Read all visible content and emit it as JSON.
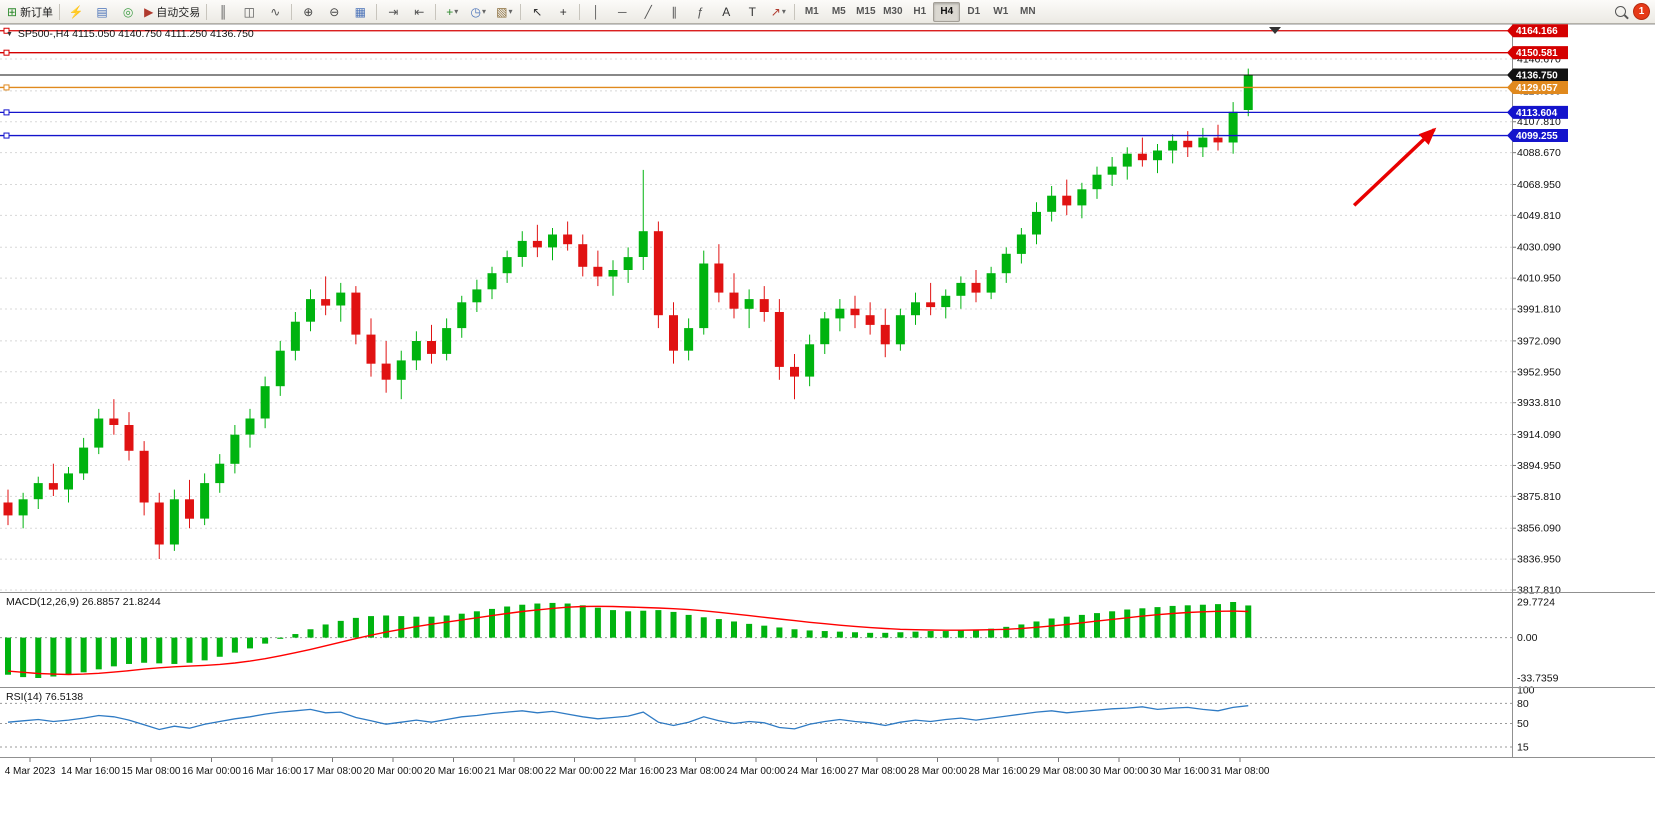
{
  "toolbar": {
    "new_order_label": "新订单",
    "autotrading_label": "自动交易",
    "groups": [
      {
        "items": [
          {
            "name": "new-order-button",
            "glyph": "⊞",
            "glyph_color": "#2e8b2e",
            "label": "新订单"
          }
        ]
      },
      {
        "items": [
          {
            "name": "market-watch-icon",
            "glyph": "⚡",
            "glyph_color": "#c8921e"
          },
          {
            "name": "data-window-icon",
            "glyph": "▤",
            "glyph_color": "#4a72b8"
          },
          {
            "name": "strategy-tester-icon",
            "glyph": "◎",
            "glyph_color": "#3f9d44"
          },
          {
            "name": "autotrading-button",
            "glyph": "▶",
            "glyph_color": "#b03a2e",
            "label": "自动交易"
          }
        ]
      },
      {
        "items": [
          {
            "name": "bar-chart-icon",
            "glyph": "║",
            "glyph_color": "#555555"
          },
          {
            "name": "candlestick-chart-icon",
            "glyph": "◫",
            "glyph_color": "#555555"
          },
          {
            "name": "line-chart-icon",
            "glyph": "∿",
            "glyph_color": "#555555"
          }
        ]
      },
      {
        "items": [
          {
            "name": "zoom-in-icon",
            "glyph": "⊕",
            "glyph_color": "#444444"
          },
          {
            "name": "zoom-out-icon",
            "glyph": "⊖",
            "glyph_color": "#444444"
          },
          {
            "name": "tile-windows-icon",
            "glyph": "▦",
            "glyph_color": "#4a72b8"
          }
        ]
      },
      {
        "items": [
          {
            "name": "auto-scroll-icon",
            "glyph": "⇥",
            "glyph_color": "#555555"
          },
          {
            "name": "chart-shift-icon",
            "glyph": "⇤",
            "glyph_color": "#555555"
          }
        ]
      },
      {
        "items": [
          {
            "name": "indicators-icon",
            "glyph": "+",
            "glyph_color": "#2e8b2e",
            "caret": true
          },
          {
            "name": "periods-icon",
            "glyph": "◷",
            "glyph_color": "#4a72b8",
            "caret": true
          },
          {
            "name": "templates-icon",
            "glyph": "▧",
            "glyph_color": "#8a6d3b",
            "caret": true
          }
        ]
      },
      {
        "items": [
          {
            "name": "cursor-icon",
            "glyph": "↖",
            "glyph_color": "#333333"
          },
          {
            "name": "crosshair-icon",
            "glyph": "+",
            "glyph_color": "#333333"
          }
        ]
      },
      {
        "items": [
          {
            "name": "vertical-line-icon",
            "glyph": "│",
            "glyph_color": "#555555"
          },
          {
            "name": "horizontal-line-icon",
            "glyph": "─",
            "glyph_color": "#555555"
          },
          {
            "name": "trendline-icon",
            "glyph": "╱",
            "glyph_color": "#555555"
          },
          {
            "name": "channel-icon",
            "glyph": "∥",
            "glyph_color": "#555555"
          },
          {
            "name": "fibonacci-icon",
            "glyph": "ƒ",
            "glyph_color": "#555555"
          },
          {
            "name": "text-icon",
            "glyph": "A",
            "glyph_color": "#333333"
          },
          {
            "name": "text-label-icon",
            "glyph": "T",
            "glyph_color": "#333333"
          },
          {
            "name": "arrows-icon",
            "glyph": "↗",
            "glyph_color": "#b03a2e",
            "caret": true
          }
        ]
      }
    ],
    "timeframes": [
      "M1",
      "M5",
      "M15",
      "M30",
      "H1",
      "H4",
      "D1",
      "W1",
      "MN"
    ],
    "active_timeframe": "H4",
    "notification_count": "1"
  },
  "chart": {
    "symbol": "SP500-,H4",
    "ohlc": "4115.050 4140.750 4111.250 4136.750"
  },
  "price_axis": {
    "labels": [
      "4146.670",
      "4126.930",
      "4107.810",
      "4088.670",
      "4068.950",
      "4049.810",
      "4030.090",
      "4010.950",
      "3991.810",
      "3972.090",
      "3952.950",
      "3933.810",
      "3914.090",
      "3894.950",
      "3875.810",
      "3856.090",
      "3836.950",
      "3817.810"
    ]
  },
  "time_axis": {
    "labels": [
      "4 Mar 2023",
      "14 Mar 16:00",
      "15 Mar 08:00",
      "16 Mar 00:00",
      "16 Mar 16:00",
      "17 Mar 08:00",
      "20 Mar 00:00",
      "20 Mar 16:00",
      "21 Mar 08:00",
      "22 Mar 00:00",
      "22 Mar 16:00",
      "23 Mar 08:00",
      "24 Mar 00:00",
      "24 Mar 16:00",
      "27 Mar 08:00",
      "28 Mar 00:00",
      "28 Mar 16:00",
      "29 Mar 08:00",
      "30 Mar 00:00",
      "30 Mar 16:00",
      "31 Mar 08:00"
    ]
  },
  "price_lines": [
    {
      "label": "4164.166",
      "price": 4164.166,
      "color": "#d40000",
      "current": false
    },
    {
      "label": "4150.581",
      "price": 4150.581,
      "color": "#d40000",
      "current": false
    },
    {
      "label": "4136.750",
      "price": 4136.75,
      "color": "#111111",
      "current": true
    },
    {
      "label": "4129.057",
      "price": 4129.057,
      "color": "#e0891e",
      "current": false
    },
    {
      "label": "4113.604",
      "price": 4113.604,
      "color": "#1414cc",
      "current": false
    },
    {
      "label": "4099.255",
      "price": 4099.255,
      "color": "#1414cc",
      "current": false
    }
  ],
  "indicators": {
    "macd": {
      "label": "MACD(12,26,9) 26.8857 21.8244",
      "axis": [
        "29.7724",
        "0.00",
        "-33.7359"
      ],
      "histogram": [
        -31,
        -33,
        -33.7359,
        -32.5,
        -31,
        -29,
        -26.5,
        -24,
        -22,
        -21,
        -21.5,
        -22,
        -21,
        -19,
        -16,
        -12.5,
        -9,
        -5,
        -1,
        3,
        7,
        11,
        14,
        16.5,
        18,
        18.5,
        18,
        17.5,
        17.5,
        18.5,
        20,
        22,
        24,
        26,
        27.5,
        28.5,
        29,
        28.5,
        27,
        25,
        23,
        22,
        22.5,
        23,
        21.5,
        19,
        17,
        15.5,
        13.5,
        11.5,
        10,
        8.5,
        7,
        6,
        5.5,
        5,
        4.5,
        4,
        4,
        4.5,
        5,
        5.5,
        5.5,
        6,
        6.5,
        7.5,
        9,
        11,
        13.5,
        16,
        17.5,
        19,
        20.5,
        22,
        23.5,
        24.5,
        25.5,
        26.5,
        27,
        27.5,
        28,
        29.7724,
        26.8857
      ],
      "signal": [
        -28,
        -29,
        -30,
        -30.5,
        -30.8,
        -30.5,
        -29.8,
        -28.8,
        -27.6,
        -26.3,
        -25.2,
        -24.4,
        -23.8,
        -23.2,
        -22.4,
        -21.2,
        -19.6,
        -17.6,
        -15.2,
        -12.6,
        -9.8,
        -6.8,
        -3.8,
        -0.8,
        2,
        4.6,
        7,
        9.2,
        11.2,
        13,
        14.8,
        16.6,
        18.4,
        20.2,
        21.8,
        23.2,
        24.4,
        25.4,
        26,
        26.2,
        26,
        25.6,
        25.2,
        24.8,
        24.2,
        23.4,
        22.4,
        21.2,
        19.8,
        18.4,
        17,
        15.6,
        14.2,
        12.8,
        11.6,
        10.4,
        9.4,
        8.4,
        7.6,
        7,
        6.6,
        6.4,
        6.2,
        6.2,
        6.4,
        6.6,
        7,
        7.6,
        8.6,
        9.8,
        11,
        12.4,
        13.8,
        15.2,
        16.6,
        18,
        19.2,
        20.2,
        21,
        21.6,
        22,
        22.2,
        21.8244
      ]
    },
    "rsi": {
      "label": "RSI(14) 76.5138",
      "axis": [
        "100",
        "80",
        "50",
        "15"
      ],
      "levels": [
        80,
        50,
        15
      ],
      "values": [
        52,
        54,
        56,
        53,
        55,
        58,
        62,
        60,
        55,
        48,
        41,
        46,
        43,
        49,
        53,
        57,
        60,
        64,
        67,
        69,
        71,
        66,
        67,
        59,
        54,
        49,
        52,
        55,
        52,
        56,
        60,
        62,
        65,
        67,
        69,
        66,
        68,
        64,
        60,
        57,
        59,
        61,
        67,
        52,
        47,
        52,
        60,
        54,
        50,
        53,
        51,
        44,
        42,
        49,
        53,
        56,
        53,
        51,
        47,
        52,
        55,
        53,
        56,
        58,
        55,
        58,
        61,
        64,
        67,
        69,
        66,
        68,
        70,
        72,
        73,
        75,
        71,
        73,
        74,
        71,
        69,
        74,
        76.5138
      ]
    }
  },
  "chart_data": {
    "type": "candlestick",
    "symbol": "SP500-",
    "timeframe": "H4",
    "current_ohlc": {
      "open": "4115.050",
      "high": "4140.750",
      "low": "4111.250",
      "close": "4136.750"
    },
    "ylim": [
      3817.81,
      4146.67
    ],
    "ohlc": [
      [
        3872,
        3880,
        3858,
        3864
      ],
      [
        3864,
        3878,
        3856,
        3874
      ],
      [
        3874,
        3888,
        3868,
        3884
      ],
      [
        3884,
        3896,
        3876,
        3880
      ],
      [
        3880,
        3894,
        3872,
        3890
      ],
      [
        3890,
        3912,
        3886,
        3906
      ],
      [
        3906,
        3930,
        3902,
        3924
      ],
      [
        3924,
        3936,
        3914,
        3920
      ],
      [
        3920,
        3928,
        3898,
        3904
      ],
      [
        3904,
        3910,
        3864,
        3872
      ],
      [
        3872,
        3878,
        3837,
        3846
      ],
      [
        3846,
        3880,
        3842,
        3874
      ],
      [
        3874,
        3886,
        3856,
        3862
      ],
      [
        3862,
        3890,
        3858,
        3884
      ],
      [
        3884,
        3902,
        3878,
        3896
      ],
      [
        3896,
        3920,
        3890,
        3914
      ],
      [
        3914,
        3930,
        3906,
        3924
      ],
      [
        3924,
        3950,
        3918,
        3944
      ],
      [
        3944,
        3972,
        3938,
        3966
      ],
      [
        3966,
        3990,
        3960,
        3984
      ],
      [
        3984,
        4004,
        3978,
        3998
      ],
      [
        3998,
        4012,
        3988,
        3994
      ],
      [
        3994,
        4008,
        3984,
        4002
      ],
      [
        4002,
        4006,
        3970,
        3976
      ],
      [
        3976,
        3986,
        3950,
        3958
      ],
      [
        3958,
        3972,
        3940,
        3948
      ],
      [
        3948,
        3966,
        3936,
        3960
      ],
      [
        3960,
        3978,
        3954,
        3972
      ],
      [
        3972,
        3982,
        3958,
        3964
      ],
      [
        3964,
        3986,
        3960,
        3980
      ],
      [
        3980,
        4000,
        3974,
        3996
      ],
      [
        3996,
        4010,
        3990,
        4004
      ],
      [
        4004,
        4018,
        3998,
        4014
      ],
      [
        4014,
        4028,
        4008,
        4024
      ],
      [
        4024,
        4040,
        4018,
        4034
      ],
      [
        4034,
        4044,
        4024,
        4030
      ],
      [
        4030,
        4042,
        4022,
        4038
      ],
      [
        4038,
        4046,
        4028,
        4032
      ],
      [
        4032,
        4038,
        4012,
        4018
      ],
      [
        4018,
        4028,
        4006,
        4012
      ],
      [
        4012,
        4022,
        4000,
        4016
      ],
      [
        4016,
        4030,
        4008,
        4024
      ],
      [
        4024,
        4078,
        4016,
        4040
      ],
      [
        4040,
        4046,
        3980,
        3988
      ],
      [
        3988,
        3996,
        3958,
        3966
      ],
      [
        3966,
        3986,
        3960,
        3980
      ],
      [
        3980,
        4028,
        3976,
        4020
      ],
      [
        4020,
        4032,
        3996,
        4002
      ],
      [
        4002,
        4014,
        3986,
        3992
      ],
      [
        3992,
        4004,
        3980,
        3998
      ],
      [
        3998,
        4006,
        3984,
        3990
      ],
      [
        3990,
        3998,
        3948,
        3956
      ],
      [
        3956,
        3964,
        3936,
        3950
      ],
      [
        3950,
        3976,
        3944,
        3970
      ],
      [
        3970,
        3990,
        3964,
        3986
      ],
      [
        3986,
        3998,
        3978,
        3992
      ],
      [
        3992,
        4000,
        3980,
        3988
      ],
      [
        3988,
        3996,
        3976,
        3982
      ],
      [
        3982,
        3992,
        3962,
        3970
      ],
      [
        3970,
        3992,
        3966,
        3988
      ],
      [
        3988,
        4002,
        3982,
        3996
      ],
      [
        3996,
        4008,
        3988,
        3993
      ],
      [
        3993,
        4004,
        3986,
        4000
      ],
      [
        4000,
        4012,
        3992,
        4008
      ],
      [
        4008,
        4016,
        3996,
        4002
      ],
      [
        4002,
        4018,
        3998,
        4014
      ],
      [
        4014,
        4030,
        4008,
        4026
      ],
      [
        4026,
        4042,
        4020,
        4038
      ],
      [
        4038,
        4058,
        4032,
        4052
      ],
      [
        4052,
        4068,
        4046,
        4062
      ],
      [
        4062,
        4072,
        4050,
        4056
      ],
      [
        4056,
        4070,
        4048,
        4066
      ],
      [
        4066,
        4080,
        4060,
        4075
      ],
      [
        4075,
        4086,
        4068,
        4080
      ],
      [
        4080,
        4092,
        4072,
        4088
      ],
      [
        4088,
        4098,
        4080,
        4084
      ],
      [
        4084,
        4094,
        4076,
        4090
      ],
      [
        4090,
        4100,
        4082,
        4096
      ],
      [
        4096,
        4102,
        4086,
        4092
      ],
      [
        4092,
        4104,
        4086,
        4098
      ],
      [
        4098,
        4106,
        4090,
        4095
      ],
      [
        4095,
        4120,
        4088,
        4114
      ],
      [
        4115.05,
        4140.75,
        4111.25,
        4136.75
      ]
    ]
  },
  "annotation": {
    "arrow": {
      "from": {
        "bar": 89,
        "price": 4056
      },
      "to": {
        "bar": 94.3,
        "price": 4103
      },
      "color": "#e80000",
      "width": 3.5
    }
  },
  "colors": {
    "up": "#00b30f",
    "down": "#e01212",
    "grid": "#d8d8d8",
    "macd_hist": "#00b30f",
    "macd_signal": "#ff0000",
    "rsi_line": "#2f7bc4",
    "separator": "#909090"
  }
}
